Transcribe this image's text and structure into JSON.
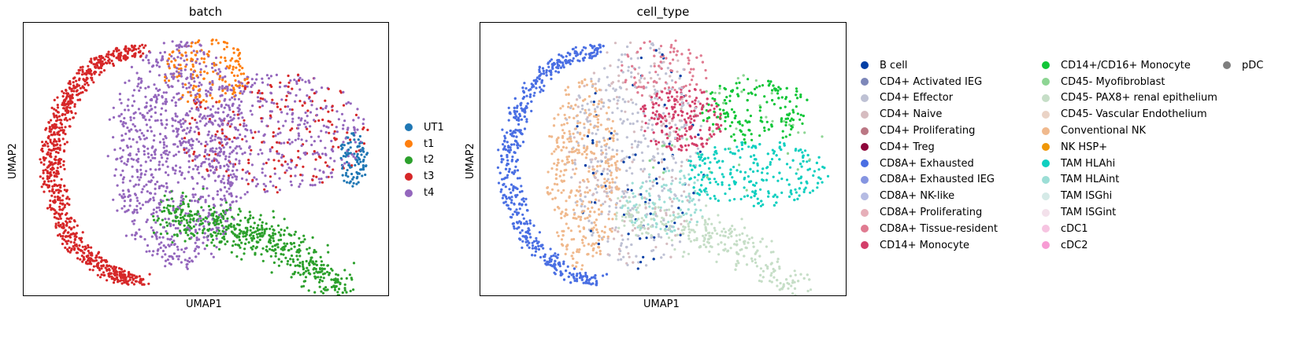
{
  "chart_data": [
    {
      "type": "scatter",
      "title": "batch",
      "xlabel": "UMAP1",
      "ylabel": "UMAP2",
      "grid": false,
      "legend_position": "right",
      "categories": [
        {
          "name": "UT1",
          "color": "#1f77b4"
        },
        {
          "name": "t1",
          "color": "#ff7f0e"
        },
        {
          "name": "t2",
          "color": "#2ca02c"
        },
        {
          "name": "t3",
          "color": "#d62728"
        },
        {
          "name": "t4",
          "color": "#9467bd"
        }
      ]
    },
    {
      "type": "scatter",
      "title": "cell_type",
      "xlabel": "UMAP1",
      "ylabel": "UMAP2",
      "grid": false,
      "legend_position": "right",
      "categories": [
        {
          "name": "B cell",
          "color": "#023fa5"
        },
        {
          "name": "CD4+ Activated IEG",
          "color": "#7d87b9"
        },
        {
          "name": "CD4+ Effector",
          "color": "#bec1d4"
        },
        {
          "name": "CD4+ Naive",
          "color": "#d6bcc0"
        },
        {
          "name": "CD4+ Proliferating",
          "color": "#bb7784"
        },
        {
          "name": "CD4+ Treg",
          "color": "#8e063b"
        },
        {
          "name": "CD8A+ Exhausted",
          "color": "#4a6fe3"
        },
        {
          "name": "CD8A+ Exhausted IEG",
          "color": "#8595e1"
        },
        {
          "name": "CD8A+ NK-like",
          "color": "#b5bbe3"
        },
        {
          "name": "CD8A+ Proliferating",
          "color": "#e6afb9"
        },
        {
          "name": "CD8A+ Tissue-resident",
          "color": "#e07b91"
        },
        {
          "name": "CD14+ Monocyte",
          "color": "#d33f6a"
        },
        {
          "name": "CD14+/CD16+ Monocyte",
          "color": "#11c638"
        },
        {
          "name": "CD45- Myofibroblast",
          "color": "#8dd593"
        },
        {
          "name": "CD45- PAX8+ renal epithelium",
          "color": "#c6dec7"
        },
        {
          "name": "CD45- Vascular Endothelium",
          "color": "#ead3c6"
        },
        {
          "name": "Conventional NK",
          "color": "#f0b98d"
        },
        {
          "name": "NK HSP+",
          "color": "#ef9708"
        },
        {
          "name": "TAM HLAhi",
          "color": "#0fcfc0"
        },
        {
          "name": "TAM HLAint",
          "color": "#9cded6"
        },
        {
          "name": "TAM ISGhi",
          "color": "#d5eae7"
        },
        {
          "name": "TAM ISGint",
          "color": "#f3e1eb"
        },
        {
          "name": "cDC1",
          "color": "#f6c4e1"
        },
        {
          "name": "cDC2",
          "color": "#f79cd4"
        },
        {
          "name": "pDC",
          "color": "#7f7f7f"
        }
      ]
    }
  ]
}
